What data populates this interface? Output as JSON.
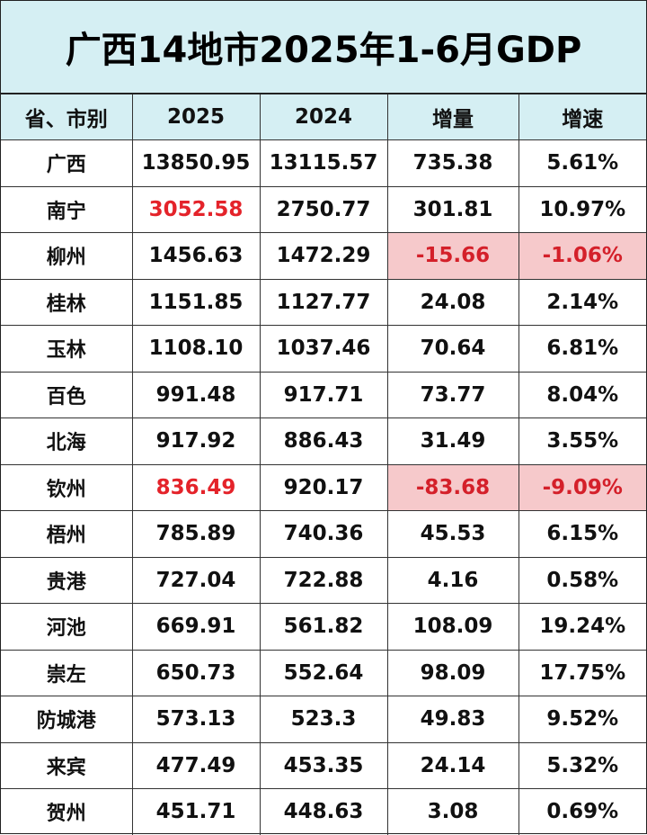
{
  "title": "广西14地市2025年1-6月GDP",
  "headers": [
    "省、市别",
    "2025",
    "2024",
    "增量",
    "增速"
  ],
  "rows": [
    {
      "name": "广西",
      "v2025": "13850.95",
      "v2024": "13115.57",
      "inc": "735.38",
      "rate": "5.61%",
      "highlight2025": false,
      "negative": false
    },
    {
      "name": "南宁",
      "v2025": "3052.58",
      "v2024": "2750.77",
      "inc": "301.81",
      "rate": "10.97%",
      "highlight2025": true,
      "negative": false
    },
    {
      "name": "柳州",
      "v2025": "1456.63",
      "v2024": "1472.29",
      "inc": "-15.66",
      "rate": "-1.06%",
      "highlight2025": false,
      "negative": true
    },
    {
      "name": "桂林",
      "v2025": "1151.85",
      "v2024": "1127.77",
      "inc": "24.08",
      "rate": "2.14%",
      "highlight2025": false,
      "negative": false
    },
    {
      "name": "玉林",
      "v2025": "1108.10",
      "v2024": "1037.46",
      "inc": "70.64",
      "rate": "6.81%",
      "highlight2025": false,
      "negative": false
    },
    {
      "name": "百色",
      "v2025": "991.48",
      "v2024": "917.71",
      "inc": "73.77",
      "rate": "8.04%",
      "highlight2025": false,
      "negative": false
    },
    {
      "name": "北海",
      "v2025": "917.92",
      "v2024": "886.43",
      "inc": "31.49",
      "rate": "3.55%",
      "highlight2025": false,
      "negative": false
    },
    {
      "name": "钦州",
      "v2025": "836.49",
      "v2024": "920.17",
      "inc": "-83.68",
      "rate": "-9.09%",
      "highlight2025": true,
      "negative": true
    },
    {
      "name": "梧州",
      "v2025": "785.89",
      "v2024": "740.36",
      "inc": "45.53",
      "rate": "6.15%",
      "highlight2025": false,
      "negative": false
    },
    {
      "name": "贵港",
      "v2025": "727.04",
      "v2024": "722.88",
      "inc": "4.16",
      "rate": "0.58%",
      "highlight2025": false,
      "negative": false
    },
    {
      "name": "河池",
      "v2025": "669.91",
      "v2024": "561.82",
      "inc": "108.09",
      "rate": "19.24%",
      "highlight2025": false,
      "negative": false
    },
    {
      "name": "崇左",
      "v2025": "650.73",
      "v2024": "552.64",
      "inc": "98.09",
      "rate": "17.75%",
      "highlight2025": false,
      "negative": false
    },
    {
      "name": "防城港",
      "v2025": "573.13",
      "v2024": "523.3",
      "inc": "49.83",
      "rate": "9.52%",
      "highlight2025": false,
      "negative": false
    },
    {
      "name": "来宾",
      "v2025": "477.49",
      "v2024": "453.35",
      "inc": "24.14",
      "rate": "5.32%",
      "highlight2025": false,
      "negative": false
    },
    {
      "name": "贺州",
      "v2025": "451.71",
      "v2024": "448.63",
      "inc": "3.08",
      "rate": "0.69%",
      "highlight2025": false,
      "negative": false
    }
  ],
  "colors": {
    "header_bg": "#d5eff3",
    "highlight_text": "#e4232a",
    "negative_bg": "#f6c9cb",
    "negative_text": "#d4202a"
  }
}
